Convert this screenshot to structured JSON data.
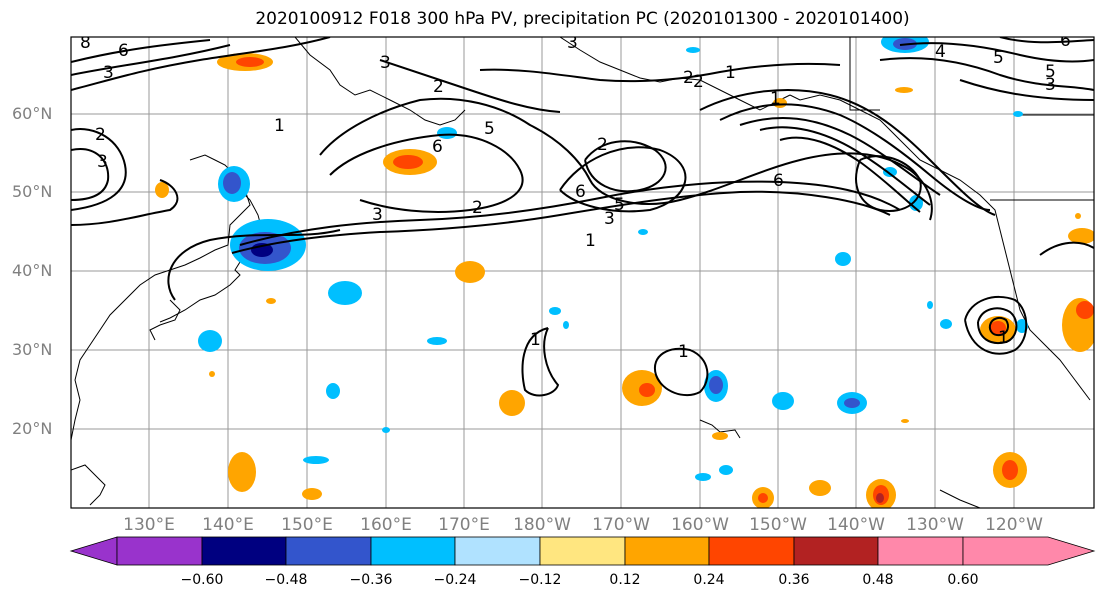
{
  "title": "2020100912 F018 300 hPa PV, precipitation PC (2020101300 - 2020101400)",
  "lat_labels": [
    "60°N",
    "50°N",
    "40°N",
    "30°N",
    "20°N"
  ],
  "lon_labels": [
    "130°E",
    "140°E",
    "150°E",
    "160°E",
    "170°E",
    "180°W",
    "170°W",
    "160°W",
    "150°W",
    "140°W",
    "130°W",
    "120°W"
  ],
  "colorbar": {
    "ticks": [
      "−0.60",
      "−0.48",
      "−0.36",
      "−0.24",
      "−0.12",
      "0.12",
      "0.24",
      "0.36",
      "0.48",
      "0.60"
    ],
    "colors": [
      "#9933cc",
      "#000080",
      "#3355cc",
      "#00bfff",
      "#b0e2ff",
      "#ffffff",
      "#ffe680",
      "#ffa500",
      "#ff4500",
      "#b22222",
      "#ff88aa"
    ]
  },
  "contour_labels": [
    "8",
    "6",
    "3",
    "2",
    "3",
    "2",
    "1",
    "3",
    "2",
    "6",
    "5",
    "3",
    "2",
    "3",
    "1",
    "2",
    "6",
    "5",
    "3",
    "1",
    "2",
    "1",
    "6",
    "5",
    "3",
    "6",
    "5",
    "4",
    "1",
    "1",
    "1"
  ]
}
